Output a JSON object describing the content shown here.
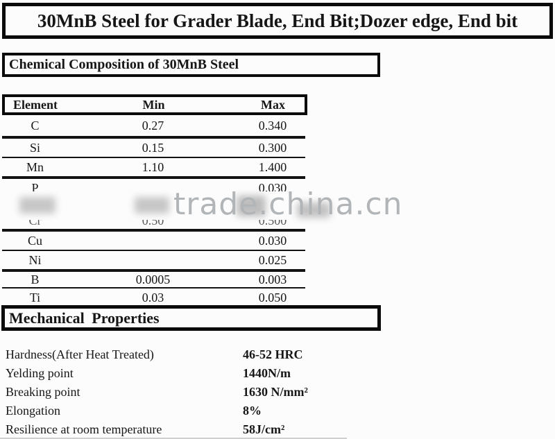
{
  "page": {
    "title": "30MnB Steel for Grader Blade, End Bit;Dozer edge, End bit"
  },
  "chemical_section": {
    "heading": "Chemical Composition of 30MnB Steel",
    "table": {
      "columns": [
        "Element",
        "Min",
        "Max"
      ],
      "rows": [
        {
          "element": "C",
          "min": "0.27",
          "max": "0.340"
        },
        {
          "element": "Si",
          "min": "0.15",
          "max": "0.300"
        },
        {
          "element": "Mn",
          "min": "1.10",
          "max": "1.400"
        },
        {
          "element": "P",
          "min": "",
          "max": "0.030"
        },
        {
          "element": "Cr",
          "min": "0.50",
          "max": "0.500",
          "partially_hidden_by_watermark": true
        },
        {
          "element": "Cu",
          "min": "",
          "max": "0.030"
        },
        {
          "element": "Ni",
          "min": "",
          "max": "0.025"
        },
        {
          "element": "B",
          "min": "0.0005",
          "max": "0.003"
        },
        {
          "element": "Ti",
          "min": "0.03",
          "max": "0.050"
        }
      ]
    }
  },
  "watermark": {
    "text": "trade.china.cn",
    "color": "#b2b5b7"
  },
  "mechanical_section": {
    "heading": "Mechanical Properties",
    "properties": [
      {
        "label": "Hardness(After Heat Treated)",
        "value": "46-52 HRC"
      },
      {
        "label": "Yelding point",
        "value": "1440N/m"
      },
      {
        "label": "Breaking point",
        "value": "1630 N/mm²"
      },
      {
        "label": "Elongation",
        "value": "8%"
      },
      {
        "label": "Resilience at room temperature",
        "value": "58J/cm²"
      }
    ]
  }
}
